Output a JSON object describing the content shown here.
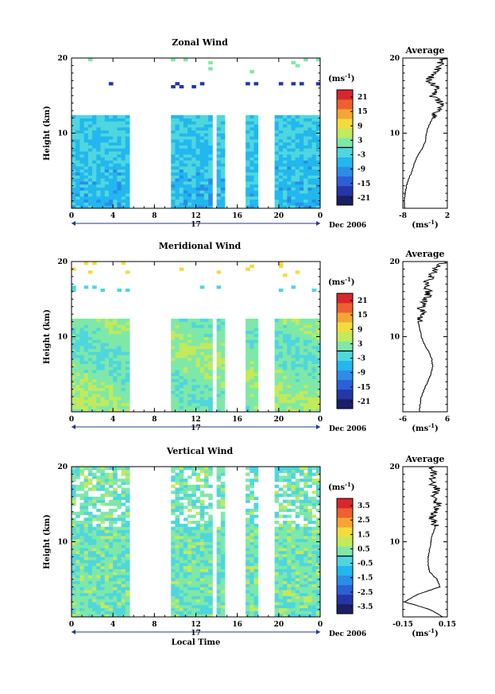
{
  "chart_data": [
    {
      "type": "heatmap",
      "title": "Zonal Wind",
      "ylabel": "Height (km)",
      "ylim": [
        0,
        20
      ],
      "xticks": [
        "0",
        "4",
        "8",
        "12",
        "16",
        "20",
        "0"
      ],
      "yticks": [
        "20",
        "10"
      ],
      "date_day": "17",
      "date_label": "Dec 2006",
      "colorbar": {
        "unit_label": "(ms",
        "unit_sup": "-1",
        "unit_close": ")",
        "ticks": [
          "21",
          "15",
          "9",
          "3",
          "-3",
          "-9",
          "-15",
          "-21"
        ],
        "range": [
          -24,
          24
        ]
      },
      "data_gaps": [
        [
          5.5,
          9.5
        ],
        [
          13.5,
          14.0
        ],
        [
          15.0,
          17.0
        ],
        [
          18.0,
          19.5
        ]
      ],
      "profile": {
        "title": "Average",
        "xlabel": "(ms",
        "xlabel_sup": "-1",
        "xlabel_close": ")",
        "xticks": [
          "-8",
          "2"
        ],
        "xlim": [
          -8,
          2
        ],
        "yticks": [
          "20",
          "10"
        ],
        "height_km": [
          0,
          1,
          2,
          3,
          4,
          5,
          6,
          7,
          8,
          9,
          10,
          11,
          12,
          13,
          14,
          15,
          16,
          17,
          18,
          19,
          20
        ],
        "values": [
          -7.6,
          -7.7,
          -7.5,
          -7.2,
          -6.6,
          -5.9,
          -5.4,
          -4.7,
          -3.6,
          -2.9,
          -2.7,
          -2.2,
          -1.3,
          -0.2,
          0.6,
          -1.6,
          -0.2,
          -2.3,
          -0.6,
          0.0,
          1.4
        ]
      }
    },
    {
      "type": "heatmap",
      "title": "Meridional Wind",
      "ylabel": "Height (km)",
      "ylim": [
        0,
        20
      ],
      "xticks": [
        "0",
        "4",
        "8",
        "12",
        "16",
        "20",
        "0"
      ],
      "yticks": [
        "20",
        "10"
      ],
      "date_day": "17",
      "date_label": "Dec 2006",
      "colorbar": {
        "unit_label": "(ms",
        "unit_sup": "-1",
        "unit_close": ")",
        "ticks": [
          "21",
          "15",
          "9",
          "3",
          "-3",
          "-9",
          "-15",
          "-21"
        ],
        "range": [
          -24,
          24
        ]
      },
      "data_gaps": [
        [
          5.5,
          9.5
        ],
        [
          13.5,
          14.0
        ],
        [
          15.0,
          17.0
        ],
        [
          18.0,
          19.5
        ]
      ],
      "profile": {
        "title": "Average",
        "xlabel": "(ms",
        "xlabel_sup": "-1",
        "xlabel_close": ")",
        "xticks": [
          "-6",
          "6"
        ],
        "xlim": [
          -6,
          6
        ],
        "yticks": [
          "20",
          "10"
        ],
        "height_km": [
          0,
          1,
          2,
          3,
          4,
          5,
          6,
          7,
          8,
          9,
          10,
          11,
          12,
          13,
          14,
          15,
          16,
          17,
          18,
          19,
          20
        ],
        "values": [
          -1.5,
          -1.4,
          -1.0,
          -0.2,
          0.7,
          1.6,
          2.0,
          1.8,
          1.0,
          -0.2,
          -1.0,
          -1.4,
          -1.9,
          -0.7,
          -1.1,
          0.4,
          1.0,
          0.2,
          1.9,
          2.5,
          5.5
        ]
      }
    },
    {
      "type": "heatmap",
      "title": "Vertical Wind",
      "ylabel": "Height (km)",
      "xlabel": "Local Time",
      "ylim": [
        0,
        20
      ],
      "xticks": [
        "0",
        "4",
        "8",
        "12",
        "16",
        "20",
        "0"
      ],
      "yticks": [
        "20",
        "10"
      ],
      "date_day": "17",
      "date_label": "Dec 2006",
      "colorbar": {
        "unit_label": "(ms",
        "unit_sup": "-1",
        "unit_close": ")",
        "ticks": [
          "3.5",
          "2.5",
          "1.5",
          "0.5",
          "-0.5",
          "-1.5",
          "-2.5",
          "-3.5"
        ],
        "range": [
          -4,
          4
        ]
      },
      "data_gaps": [
        [
          5.5,
          9.5
        ],
        [
          13.5,
          14.0
        ],
        [
          15.0,
          17.0
        ],
        [
          18.0,
          19.5
        ]
      ],
      "profile": {
        "title": "Average",
        "xlabel": "(ms",
        "xlabel_sup": "-1",
        "xlabel_close": ")",
        "xticks": [
          "-0.15",
          "0.15"
        ],
        "xlim": [
          -0.15,
          0.15
        ],
        "yticks": [
          "20",
          "10"
        ],
        "height_km": [
          0,
          1,
          2,
          3,
          4,
          5,
          6,
          7,
          8,
          9,
          10,
          11,
          12,
          13,
          14,
          15,
          16,
          17,
          18,
          19,
          20
        ],
        "values": [
          0.12,
          0.03,
          -0.14,
          -0.05,
          0.1,
          0.08,
          0.03,
          0.02,
          0.02,
          0.03,
          0.04,
          0.05,
          0.07,
          0.05,
          0.06,
          0.09,
          0.05,
          0.08,
          0.04,
          0.06,
          0.05
        ]
      }
    }
  ]
}
